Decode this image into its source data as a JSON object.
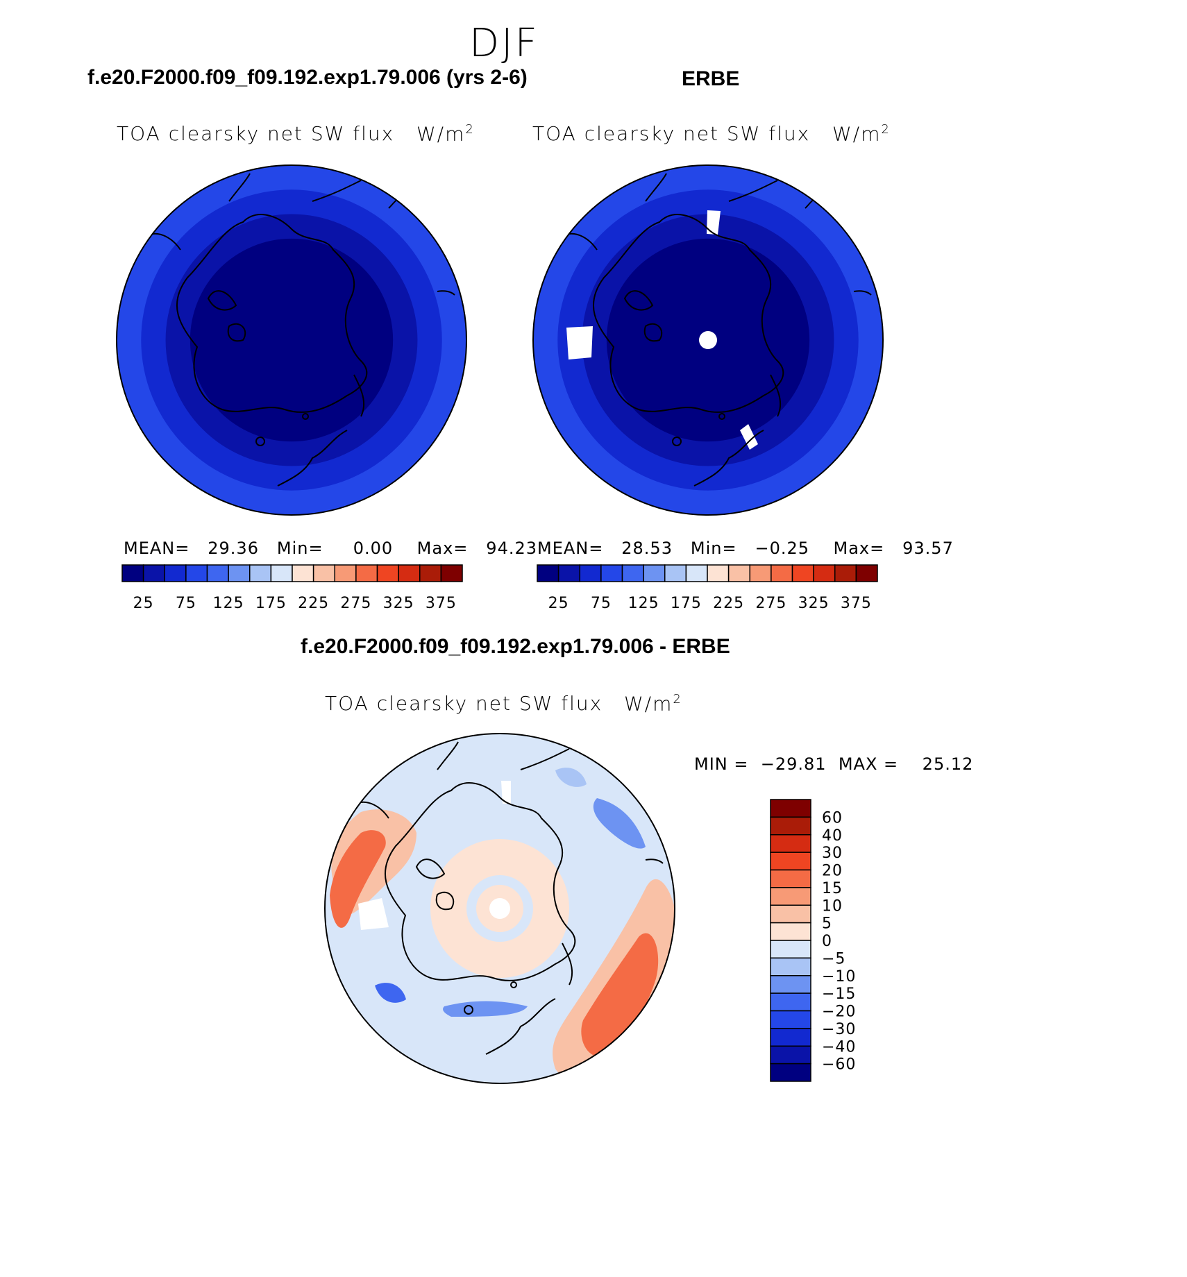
{
  "season": "DJF",
  "panels": [
    {
      "case": "f.e20.F2000.f09_f09.192.exp1.79.006 (yrs 2-6)",
      "variable": "TOA clearsky net SW flux",
      "units_base": "W/m",
      "units_exp": "2",
      "mean_label": "MEAN=",
      "mean": "29.36",
      "min_label": "Min=",
      "min": "0.00",
      "max_label": "Max=",
      "max": "94.23"
    },
    {
      "case": "ERBE",
      "variable": "TOA clearsky net SW flux",
      "units_base": "W/m",
      "units_exp": "2",
      "mean_label": "MEAN=",
      "mean": "28.53",
      "min_label": "Min=",
      "min": "−0.25",
      "max_label": "Max=",
      "max": "93.57"
    }
  ],
  "diff": {
    "title": "f.e20.F2000.f09_f09.192.exp1.79.006 - ERBE",
    "variable": "TOA clearsky net SW flux",
    "units_base": "W/m",
    "units_exp": "2",
    "min_label": "MIN =",
    "min": "−29.81",
    "max_label": "MAX =",
    "max": "25.12"
  },
  "colors": {
    "field_seq": [
      "#000080",
      "#0a13a8",
      "#1229d0",
      "#2447e8",
      "#3e66f0",
      "#6d93f2",
      "#a9c4f5",
      "#d8e6f9",
      "#fde3d4",
      "#f9c1a6",
      "#f79a76",
      "#f46b45",
      "#ef4522",
      "#d52c12",
      "#aa1c08",
      "#7e0000"
    ],
    "diff_seq": [
      "#000080",
      "#0a13a8",
      "#1229d0",
      "#2447e8",
      "#3e66f0",
      "#6d93f2",
      "#a9c4f5",
      "#d8e6f9",
      "#fde3d4",
      "#f9c1a6",
      "#f79a76",
      "#f46b45",
      "#ef4522",
      "#d52c12",
      "#aa1c08",
      "#7e0000"
    ]
  },
  "chart_data": [
    {
      "type": "heatmap",
      "projection": "north polar stereographic",
      "title": "f.e20.F2000.f09_f09.192.exp1.79.006 (yrs 2-6)",
      "variable": "TOA clearsky net SW flux",
      "units": "W/m2",
      "stats": {
        "mean": 29.36,
        "min": 0.0,
        "max": 94.23
      },
      "colorbar": {
        "orientation": "horizontal",
        "levels": [
          25,
          50,
          75,
          100,
          125,
          150,
          175,
          200,
          225,
          250,
          275,
          300,
          325,
          350,
          375
        ],
        "tick_labels": [
          "25",
          "75",
          "125",
          "175",
          "225",
          "275",
          "325",
          "375"
        ]
      },
      "field_rings": [
        {
          "outer_fraction": 1.0,
          "value_range": "75-100"
        },
        {
          "outer_fraction": 0.86,
          "value_range": "50-75"
        },
        {
          "outer_fraction": 0.72,
          "value_range": "25-50"
        },
        {
          "outer_fraction": 0.58,
          "value_range": "0-25"
        }
      ]
    },
    {
      "type": "heatmap",
      "projection": "north polar stereographic",
      "title": "ERBE",
      "variable": "TOA clearsky net SW flux",
      "units": "W/m2",
      "stats": {
        "mean": 28.53,
        "min": -0.25,
        "max": 93.57
      },
      "colorbar": {
        "orientation": "horizontal",
        "levels": [
          25,
          50,
          75,
          100,
          125,
          150,
          175,
          200,
          225,
          250,
          275,
          300,
          325,
          350,
          375
        ],
        "tick_labels": [
          "25",
          "75",
          "125",
          "175",
          "225",
          "275",
          "325",
          "375"
        ]
      },
      "field_rings": [
        {
          "outer_fraction": 1.0,
          "value_range": "75-100"
        },
        {
          "outer_fraction": 0.86,
          "value_range": "50-75"
        },
        {
          "outer_fraction": 0.72,
          "value_range": "25-50"
        },
        {
          "outer_fraction": 0.58,
          "value_range": "0-25"
        }
      ],
      "missing_data": [
        "north pole",
        "Greenland sector",
        "Alaska sector",
        "Scandinavia sector"
      ]
    },
    {
      "type": "heatmap",
      "projection": "north polar stereographic",
      "title": "f.e20.F2000.f09_f09.192.exp1.79.006 - ERBE",
      "variable": "TOA clearsky net SW flux",
      "units": "W/m2",
      "stats": {
        "min": -29.81,
        "max": 25.12
      },
      "colorbar": {
        "orientation": "vertical",
        "levels": [
          -60,
          -40,
          -30,
          -20,
          -15,
          -10,
          -5,
          0,
          5,
          10,
          15,
          20,
          30,
          40,
          60
        ],
        "tick_labels": [
          "60",
          "40",
          "30",
          "20",
          "15",
          "10",
          "5",
          "0",
          "−5",
          "−10",
          "−15",
          "−20",
          "−30",
          "−40",
          "−60"
        ]
      }
    }
  ]
}
